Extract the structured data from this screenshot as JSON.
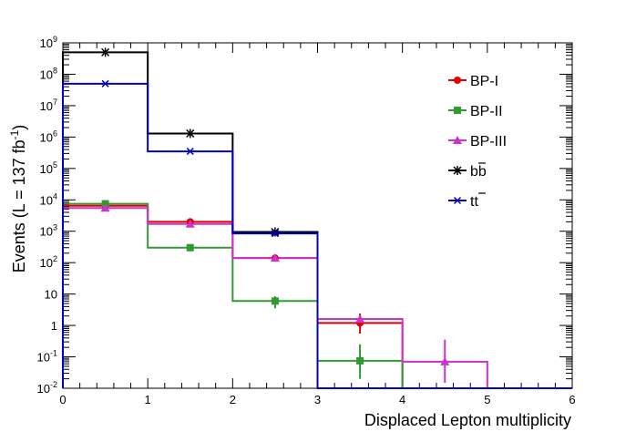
{
  "chart_data": {
    "type": "histogram",
    "yscale": "log",
    "xlabel": "Displaced Lepton multiplicity",
    "ylabel": "Events (L = 137 fb",
    "ylabel_sup": "-1",
    "ylabel_end": ")",
    "xlim": [
      0,
      6
    ],
    "ylim": [
      0.01,
      1000000000
    ],
    "x_ticks": [
      "0",
      "1",
      "2",
      "3",
      "4",
      "5",
      "6"
    ],
    "y_ticks": [
      {
        "value": 0.01,
        "base": "10",
        "exp": "-2"
      },
      {
        "value": 0.1,
        "base": "10",
        "exp": "-1"
      },
      {
        "value": 1,
        "base": "1",
        "exp": ""
      },
      {
        "value": 10,
        "base": "10",
        "exp": ""
      },
      {
        "value": 100,
        "base": "10",
        "exp": "2"
      },
      {
        "value": 1000,
        "base": "10",
        "exp": "3"
      },
      {
        "value": 10000,
        "base": "10",
        "exp": "4"
      },
      {
        "value": 100000,
        "base": "10",
        "exp": "5"
      },
      {
        "value": 1000000,
        "base": "10",
        "exp": "6"
      },
      {
        "value": 10000000,
        "base": "10",
        "exp": "7"
      },
      {
        "value": 100000000,
        "base": "10",
        "exp": "8"
      },
      {
        "value": 1000000000,
        "base": "10",
        "exp": "9"
      }
    ],
    "bin_edges": [
      0,
      1,
      2,
      3,
      4,
      5,
      6
    ],
    "series": [
      {
        "name": "bb",
        "legend_label": "bb",
        "overline": true,
        "color": "#000000",
        "marker": "star",
        "values": [
          500000000,
          1300000,
          950,
          0,
          0,
          0
        ]
      },
      {
        "name": "tt",
        "legend_label": "tt",
        "overline": true,
        "color": "#0000cc",
        "marker": "cross",
        "values": [
          50000000,
          350000,
          850,
          0,
          0,
          0
        ]
      },
      {
        "name": "BP-I",
        "legend_label": "BP-I",
        "overline": false,
        "color": "#e00000",
        "marker": "circle",
        "values": [
          6500,
          2000,
          140,
          1.2,
          0,
          0
        ]
      },
      {
        "name": "BP-II",
        "legend_label": "BP-II",
        "overline": false,
        "color": "#339933",
        "marker": "square",
        "values": [
          7500,
          300,
          6,
          0.075,
          0,
          0
        ]
      },
      {
        "name": "BP-III",
        "legend_label": "BP-III",
        "overline": false,
        "color": "#cc33cc",
        "marker": "triangle",
        "values": [
          5500,
          1700,
          140,
          1.6,
          0.07,
          0
        ]
      }
    ],
    "error_bars": [
      {
        "series": "BP-I",
        "bin": 3,
        "low": 0.55,
        "high": 2.4
      },
      {
        "series": "BP-II",
        "bin": 3,
        "low": 0.02,
        "high": 0.25
      },
      {
        "series": "BP-III",
        "bin": 4,
        "low": 0.015,
        "high": 0.35
      },
      {
        "series": "BP-II",
        "bin": 2,
        "low": 3.5,
        "high": 8.5
      }
    ],
    "legend": {
      "placement": "right",
      "order": [
        "BP-I",
        "BP-II",
        "BP-III",
        "bb",
        "tt"
      ]
    }
  }
}
